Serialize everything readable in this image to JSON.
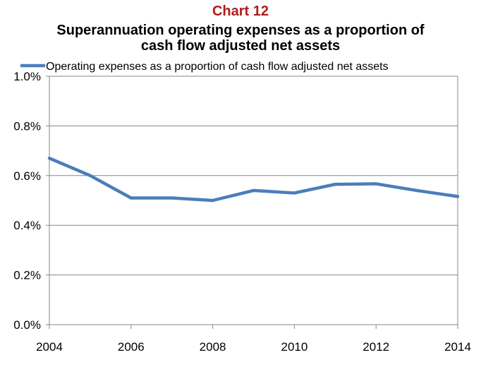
{
  "header": {
    "chart_number": "Chart 12",
    "title_line1": "Superannuation operating expenses as a proportion of",
    "title_line2": "cash flow adjusted net assets"
  },
  "chart_data": {
    "type": "line",
    "title": "Superannuation operating expenses as a proportion of cash flow adjusted net assets",
    "xlabel": "",
    "ylabel": "",
    "x": [
      2004,
      2005,
      2006,
      2007,
      2008,
      2009,
      2010,
      2011,
      2012,
      2013,
      2014
    ],
    "xlim": [
      2004,
      2014
    ],
    "ylim": [
      0,
      1.0
    ],
    "x_ticks": [
      "2004",
      "2006",
      "2008",
      "2010",
      "2012",
      "2014"
    ],
    "y_ticks": [
      "0.0%",
      "0.2%",
      "0.4%",
      "0.6%",
      "0.8%",
      "1.0%"
    ],
    "series": [
      {
        "name": "Operating expenses as a proportion of cash flow adjusted net assets",
        "color": "#4a7ebb",
        "values": [
          0.67,
          0.6,
          0.51,
          0.51,
          0.5,
          0.54,
          0.53,
          0.565,
          0.567,
          0.54,
          0.516
        ]
      }
    ],
    "grid": "horizontal",
    "legend": "top"
  }
}
